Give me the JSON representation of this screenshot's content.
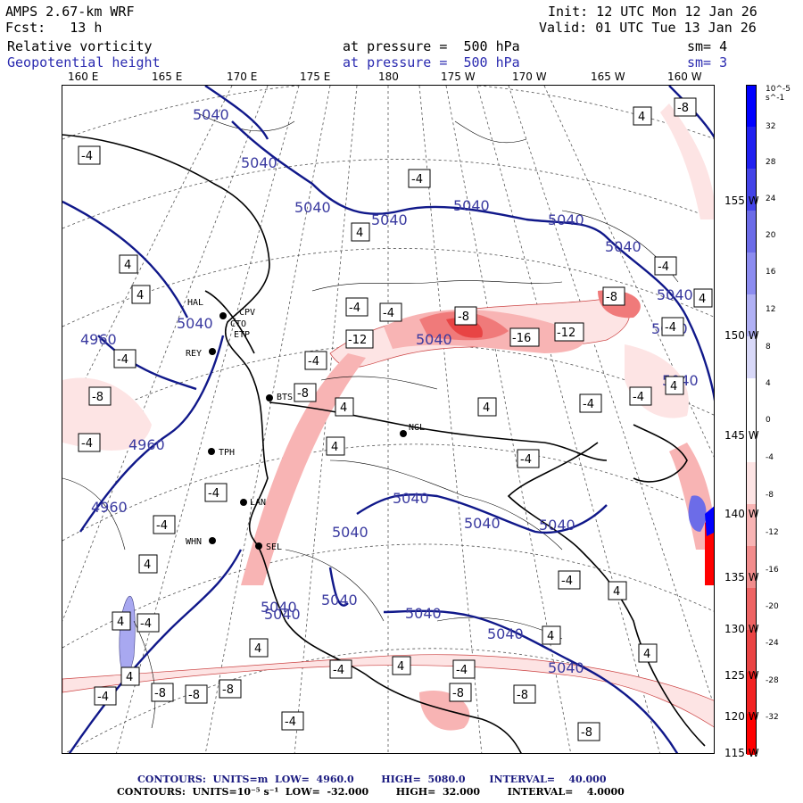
{
  "header": {
    "model": "AMPS 2.67-km WRF",
    "forecast": "Fcst:   13 h",
    "init": "Init: 12 UTC Mon 12 Jan 26",
    "valid": "Valid: 01 UTC Tue 13 Jan 26",
    "field1_name": "Relative vorticity",
    "field1_level": "at pressure =  500 hPa",
    "field1_sm": "sm= 4",
    "field2_name": "Geopotential height",
    "field2_level": "at pressure =  500 hPa",
    "field2_sm": "sm= 3"
  },
  "colors": {
    "height_contour": "#10188a",
    "height_label": "#3a3aa0",
    "neg_shade": [
      "#fde4e4",
      "#f8b4b4",
      "#f07a7a",
      "#e84444",
      "#ff0000"
    ],
    "pos_shade": [
      "#d8d8f8",
      "#a8a8f0",
      "#6c6ce8",
      "#3030e0",
      "#0000ff"
    ]
  },
  "longitudes": [
    "160 E",
    "165 E",
    "170 E",
    "175 E",
    "180",
    "175 W",
    "170 W",
    "165 W",
    "160 W"
  ],
  "latitudes": [
    "155 W",
    "150 W",
    "145 W",
    "140 W",
    "135 W",
    "130 W",
    "125 W",
    "120 W",
    "115 W"
  ],
  "colorbar": {
    "units": "10^-5 s^-1",
    "ticks": [
      "32",
      "28",
      "24",
      "20",
      "16",
      "12",
      "8",
      "4",
      "0",
      "-4",
      "-8",
      "-12",
      "-16",
      "-20",
      "-24",
      "-28",
      "-32"
    ]
  },
  "stations": [
    "CPV",
    "REY",
    "BTS",
    "NGL",
    "TPH",
    "LAN",
    "WHN",
    "SEL",
    "HAL",
    "CTO",
    "ETP"
  ],
  "contour_labels": {
    "height": [
      "5040",
      "5040",
      "5040",
      "5040",
      "5040",
      "5040",
      "5040",
      "5040",
      "5040",
      "5040",
      "5040",
      "5040",
      "5040",
      "5040",
      "5040",
      "5040",
      "5040",
      "5040",
      "4960",
      "4960",
      "4960",
      "5040",
      "5040",
      "5040",
      "5040"
    ],
    "vorticity": [
      "-4",
      "4",
      "-8",
      "-4",
      "-4",
      "-12",
      "-16",
      "-12",
      "-8",
      "4",
      "-4",
      "8",
      "-4",
      "4",
      "-8",
      "4",
      "4",
      "4",
      "-4",
      "-8",
      "-4",
      "4",
      "-4",
      "-4",
      "4",
      "4",
      "-4",
      "-8",
      "-8",
      "-8",
      "-4",
      "4",
      "4",
      "-4",
      "-4",
      "-8",
      "-4",
      "-8",
      "-8",
      "-4",
      "4",
      "4",
      "4",
      "-4",
      "4",
      "-8",
      "-4",
      "4",
      "-4",
      "-4",
      "-4",
      "-4",
      "4"
    ]
  },
  "footer": {
    "line1": "CONTOURS:  UNITS=m  LOW=  4960.0        HIGH=  5080.0       INTERVAL=    40.000",
    "line2": "CONTOURS:  UNITS=10⁻⁵ s⁻¹  LOW=  -32.000        HIGH=  32.000        INTERVAL=    4.0000"
  }
}
